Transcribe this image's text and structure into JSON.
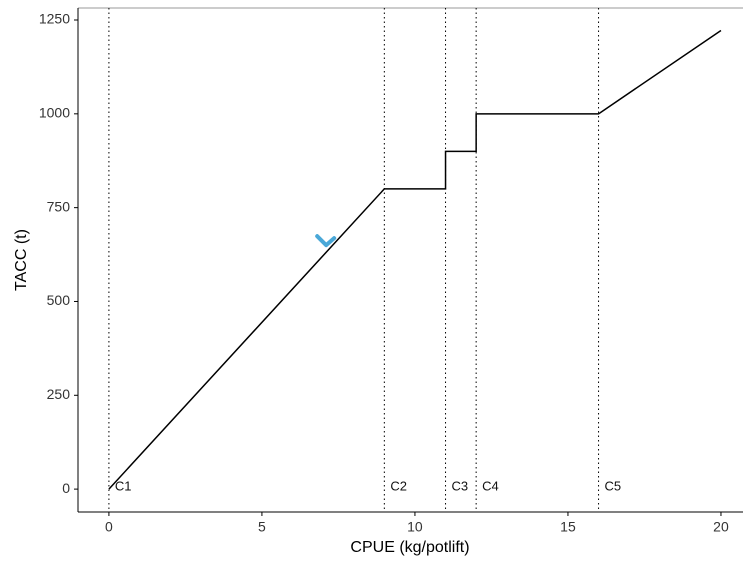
{
  "chart_data": {
    "type": "line",
    "x_label": "CPUE (kg/potlift)",
    "y_label": "TACC (t)",
    "x": [
      0,
      9,
      11,
      11,
      12,
      12,
      16,
      20
    ],
    "series": [
      {
        "color": "#000000",
        "values": [
          0,
          800,
          800,
          900,
          900,
          1000,
          1000,
          1222
        ]
      }
    ],
    "cutoffs": [
      {
        "x": 0,
        "label": "C1"
      },
      {
        "x": 9,
        "label": "C2"
      },
      {
        "x": 11,
        "label": "C3"
      },
      {
        "x": 12,
        "label": "C4"
      },
      {
        "x": 16,
        "label": "C5"
      }
    ],
    "points": [
      {
        "x": 7.1,
        "y": 650,
        "color": "#4aa8d8"
      }
    ],
    "xlim": [
      -1.01,
      20.72
    ],
    "ylim": [
      -61,
      1282
    ],
    "xticks": [
      0,
      5,
      10,
      15,
      20
    ],
    "yticks": [
      0,
      250,
      500,
      750,
      1000,
      1250
    ]
  }
}
